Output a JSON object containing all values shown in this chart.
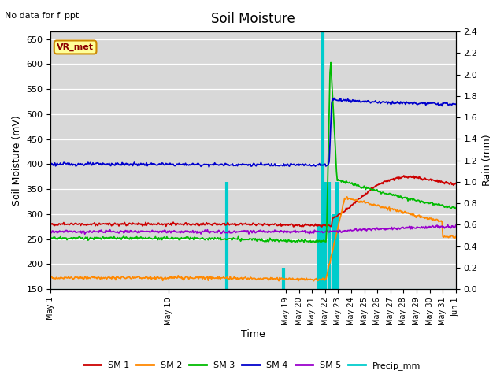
{
  "title": "Soil Moisture",
  "xlabel": "Time",
  "ylabel_left": "Soil Moisture (mV)",
  "ylabel_right": "Rain (mm)",
  "annotation": "No data for f_ppt",
  "box_label": "VR_met",
  "ylim_left": [
    150,
    665
  ],
  "ylim_right": [
    0.0,
    2.4
  ],
  "yticks_left": [
    150,
    200,
    250,
    300,
    350,
    400,
    450,
    500,
    550,
    600,
    650
  ],
  "yticks_right": [
    0.0,
    0.2,
    0.4,
    0.6,
    0.8,
    1.0,
    1.2,
    1.4,
    1.6,
    1.8,
    2.0,
    2.2,
    2.4
  ],
  "bg_color": "#d8d8d8",
  "colors": {
    "SM1": "#cc0000",
    "SM2": "#ff8800",
    "SM3": "#00bb00",
    "SM4": "#0000cc",
    "SM5": "#9900cc",
    "Precip": "#00cccc"
  },
  "legend_labels": [
    "SM 1",
    "SM 2",
    "SM 3",
    "SM 4",
    "SM 5",
    "Precip_mm"
  ],
  "x_ticks_pos": [
    0,
    9,
    18,
    19,
    20,
    21,
    22,
    23,
    24,
    25,
    26,
    27,
    28,
    29,
    30,
    31
  ],
  "x_ticks_labels": [
    "May 1",
    "May 10",
    "May 19",
    "May 20",
    "May 21",
    "May 22",
    "May 23",
    "May 24",
    "May 25",
    "May 26",
    "May 27",
    "May 28",
    "May 29",
    "May 30",
    "May 31",
    "Jun 1"
  ],
  "precip_days": [
    13.5,
    17.8,
    20.5,
    20.8,
    21.0,
    21.3,
    21.6,
    21.9,
    22.0
  ],
  "precip_vals_mm": [
    1.0,
    0.2,
    0.6,
    2.4,
    1.0,
    1.0,
    0.7,
    1.0,
    0.5
  ]
}
